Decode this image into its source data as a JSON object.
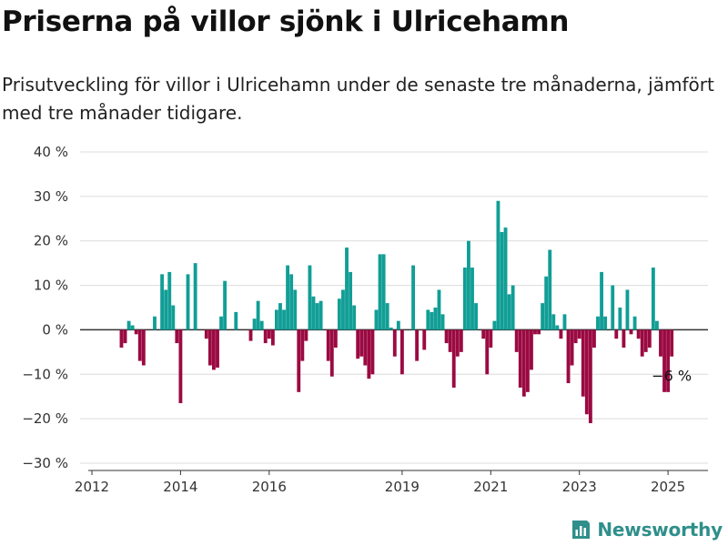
{
  "header": {
    "title": "Priserna på villor sjönk i Ulricehamn",
    "subtitle": "Prisutveckling för villor i Ulricehamn under de senaste tre månaderna, jämfört med tre månader tidigare."
  },
  "brand": {
    "name": "Newsworthy",
    "icon": "newsworthy-logo-icon",
    "color": "#2f8f8a"
  },
  "chart_data": {
    "type": "bar",
    "title": "",
    "xlabel": "",
    "ylabel": "",
    "ylim": [
      -30,
      40
    ],
    "yticks": [
      -30,
      -20,
      -10,
      0,
      10,
      20,
      30,
      40
    ],
    "ytick_labels": [
      "−30 %",
      "−20 %",
      "−10 %",
      "0 %",
      "10 %",
      "20 %",
      "30 %",
      "40 %"
    ],
    "xticks": [
      2012,
      2014,
      2016,
      2019,
      2021,
      2023,
      2025
    ],
    "xtick_labels": [
      "2012",
      "2014",
      "2016",
      "2019",
      "2021",
      "2023",
      "2025"
    ],
    "grid": true,
    "legend": "none",
    "positive_color": "#119e96",
    "negative_color": "#9b0a42",
    "x_start": "2012-09",
    "x_end": "2025-01",
    "frequency": "monthly",
    "values": [
      -4,
      -3,
      2,
      1,
      -1,
      -7,
      -8,
      0,
      0,
      3,
      0,
      12.5,
      9,
      13,
      5.5,
      -3,
      -16.5,
      0,
      12.5,
      0,
      15,
      0,
      0,
      -2,
      -8,
      -9,
      -8.5,
      3,
      11,
      0,
      0,
      4,
      0,
      0,
      0,
      -2.5,
      2.5,
      6.5,
      2,
      -3,
      -2,
      -3.5,
      4.5,
      6,
      4.5,
      14.5,
      12.5,
      9,
      -14,
      -7,
      -2.5,
      14.5,
      7.5,
      6,
      6.5,
      0,
      -7,
      -10.5,
      -4,
      7,
      9,
      18.5,
      13,
      5.5,
      -6.5,
      -6,
      -8,
      -11,
      -10,
      4.5,
      17,
      17,
      6,
      0.5,
      -6,
      2,
      -10,
      0,
      0,
      14.5,
      -7,
      0,
      -4.5,
      4.5,
      4,
      5,
      9,
      3.5,
      -3,
      -5,
      -13,
      -6,
      -5,
      14,
      20,
      14,
      6,
      0,
      -2,
      -10,
      -4,
      2,
      29,
      22,
      23,
      8,
      10,
      -5,
      -13,
      -15,
      -14,
      -9,
      -1,
      -1,
      6,
      12,
      18,
      3.5,
      1,
      -2,
      3.5,
      -12,
      -8,
      -3,
      -2,
      -15,
      -19,
      -21,
      -4,
      3,
      13,
      3,
      0,
      10,
      -2,
      5,
      -4,
      9,
      -1,
      3,
      -2,
      -6,
      -5,
      -4,
      14,
      2,
      -6,
      -14,
      -14,
      -6
    ],
    "annotations": [
      {
        "label": "−6 %",
        "value": -6,
        "target": "last"
      }
    ]
  }
}
